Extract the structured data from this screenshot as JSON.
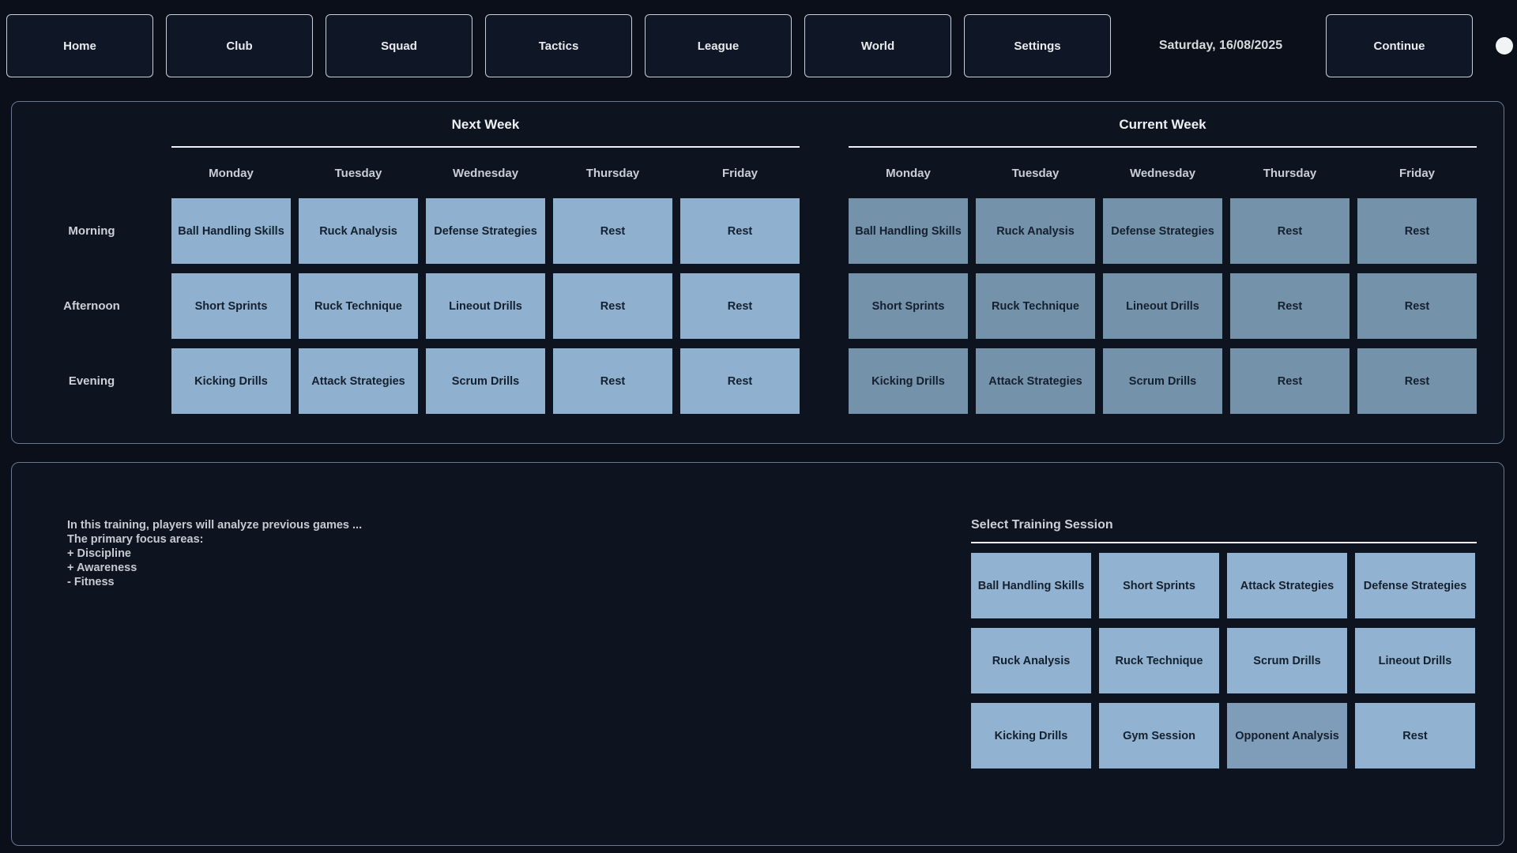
{
  "navbar": {
    "items": [
      "Home",
      "Club",
      "Squad",
      "Tactics",
      "League",
      "World",
      "Settings"
    ],
    "date": "Saturday, 16/08/2025",
    "continue_label": "Continue"
  },
  "schedule": {
    "row_labels": [
      "Morning",
      "Afternoon",
      "Evening"
    ],
    "weeks": [
      {
        "title": "Next Week",
        "days": [
          "Monday",
          "Tuesday",
          "Wednesday",
          "Thursday",
          "Friday"
        ],
        "rows": [
          [
            "Ball Handling Skills",
            "Ruck Analysis",
            "Defense Strategies",
            "Rest",
            "Rest"
          ],
          [
            "Short Sprints",
            "Ruck Technique",
            "Lineout Drills",
            "Rest",
            "Rest"
          ],
          [
            "Kicking Drills",
            "Attack Strategies",
            "Scrum Drills",
            "Rest",
            "Rest"
          ]
        ]
      },
      {
        "title": "Current Week",
        "days": [
          "Monday",
          "Tuesday",
          "Wednesday",
          "Thursday",
          "Friday"
        ],
        "rows": [
          [
            "Ball Handling Skills",
            "Ruck Analysis",
            "Defense Strategies",
            "Rest",
            "Rest"
          ],
          [
            "Short Sprints",
            "Ruck Technique",
            "Lineout Drills",
            "Rest",
            "Rest"
          ],
          [
            "Kicking Drills",
            "Attack Strategies",
            "Scrum Drills",
            "Rest",
            "Rest"
          ]
        ]
      }
    ]
  },
  "details": {
    "description_lines": [
      "In this training, players will analyze previous games ...",
      "The primary focus areas:",
      "+ Discipline",
      "+ Awareness",
      "- Fitness"
    ]
  },
  "selector": {
    "title": "Select Training Session",
    "options": [
      {
        "label": "Ball Handling Skills",
        "selected": false
      },
      {
        "label": "Short Sprints",
        "selected": false
      },
      {
        "label": "Attack Strategies",
        "selected": false
      },
      {
        "label": "Defense Strategies",
        "selected": false
      },
      {
        "label": "Ruck Analysis",
        "selected": false
      },
      {
        "label": "Ruck Technique",
        "selected": false
      },
      {
        "label": "Scrum Drills",
        "selected": false
      },
      {
        "label": "Lineout Drills",
        "selected": false
      },
      {
        "label": "Kicking Drills",
        "selected": false
      },
      {
        "label": "Gym Session",
        "selected": false
      },
      {
        "label": "Opponent Analysis",
        "selected": true
      },
      {
        "label": "Rest",
        "selected": false
      }
    ]
  },
  "colors": {
    "page_bg": "#0b0f19",
    "panel_bg": "#0d131f",
    "panel_border": "#67788f",
    "nav_btn_bg": "#0f1626",
    "nav_btn_border": "#c8cfd8",
    "text_light": "#e8ebee",
    "rule": "#eef1f4",
    "indicator": "#f2f3f4",
    "cell_next": "#8fb1cf",
    "cell_current": "#7592ab",
    "tile": "#91b3d1",
    "tile_selected": "#7f9cb9",
    "cell_text": "#15202e"
  }
}
